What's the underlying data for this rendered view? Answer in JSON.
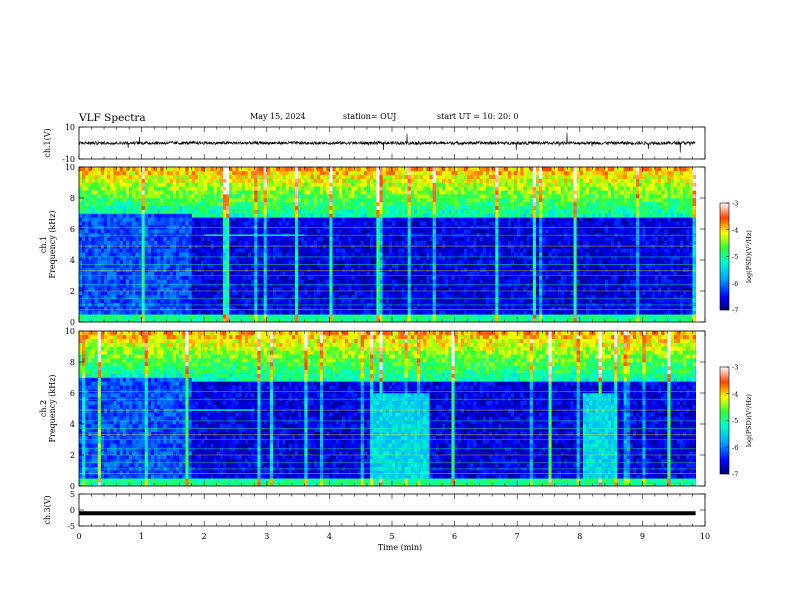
{
  "header": {
    "title": "VLF Spectra",
    "date": "May 15, 2024",
    "station": "station= OUJ",
    "start": "start  UT  =   10: 20: 0"
  },
  "chart_data": [
    {
      "type": "line",
      "panel": "ch1-waveform",
      "ylabel": "ch.1(V)",
      "ylim": [
        -10,
        10
      ],
      "y_ticks": [
        "10",
        "-10"
      ],
      "x_range": [
        0,
        10
      ],
      "series": [
        {
          "values_description_free": true,
          "baseline": 0,
          "noise_amplitude": 1
        }
      ]
    },
    {
      "type": "heatmap",
      "panel": "ch1-spectrogram",
      "ylabel": "ch.1\nFrequency  (kHz)",
      "ylim": [
        0,
        10
      ],
      "y_ticks": [
        "0",
        "2",
        "4",
        "6",
        "8",
        "10"
      ],
      "x_range": [
        0,
        10
      ],
      "data_end_min": 9.85,
      "colorbar": {
        "label": "log(PSD)(V²/Hz)",
        "range": [
          -7,
          -3
        ],
        "ticks": [
          "-3",
          "-4",
          "-5",
          "-6",
          "-7"
        ]
      },
      "features": {
        "quiet_band_top_khz_before": 6.8,
        "quiet_band_top_khz_after": 6.6,
        "transition_min": 1.8,
        "line_segment": {
          "start_min": 2.0,
          "end_min": 3.6,
          "freq_khz": 5.6
        }
      }
    },
    {
      "type": "heatmap",
      "panel": "ch2-spectrogram",
      "ylabel": "ch.2\nFrequency  (kHz)",
      "ylim": [
        0,
        10
      ],
      "y_ticks": [
        "0",
        "2",
        "4",
        "6",
        "8",
        "10"
      ],
      "x_range": [
        0,
        10
      ],
      "data_end_min": 9.85,
      "colorbar": {
        "label": "log(PSD)(V²/Hz)",
        "range": [
          -7,
          -3
        ],
        "ticks": [
          "-3",
          "-4",
          "-5",
          "-6",
          "-7"
        ]
      },
      "features": {
        "noise_block_1": {
          "start_min": 4.65,
          "end_min": 5.55,
          "max_khz": 6.0
        },
        "noise_block_2": {
          "start_min": 8.0,
          "end_min": 8.5,
          "max_khz": 6.0
        },
        "line_segment": {
          "start_min": 1.6,
          "end_min": 2.8,
          "freq_khz": 4.9
        }
      }
    },
    {
      "type": "line",
      "panel": "ch3-waveform",
      "ylabel": "ch.3(V)",
      "ylim": [
        -5,
        5
      ],
      "y_ticks": [
        "5",
        "0",
        "-5"
      ],
      "x_range": [
        0,
        10
      ],
      "series": [
        {
          "baseline": -1.0,
          "thick": true
        }
      ]
    }
  ],
  "xaxis": {
    "label": "Time  (min)",
    "ticks": [
      "0",
      "1",
      "2",
      "3",
      "4",
      "5",
      "6",
      "7",
      "8",
      "9",
      "10"
    ],
    "range": [
      0,
      10
    ]
  },
  "colors": {
    "background": "#ffffff",
    "axis": "#000000"
  }
}
